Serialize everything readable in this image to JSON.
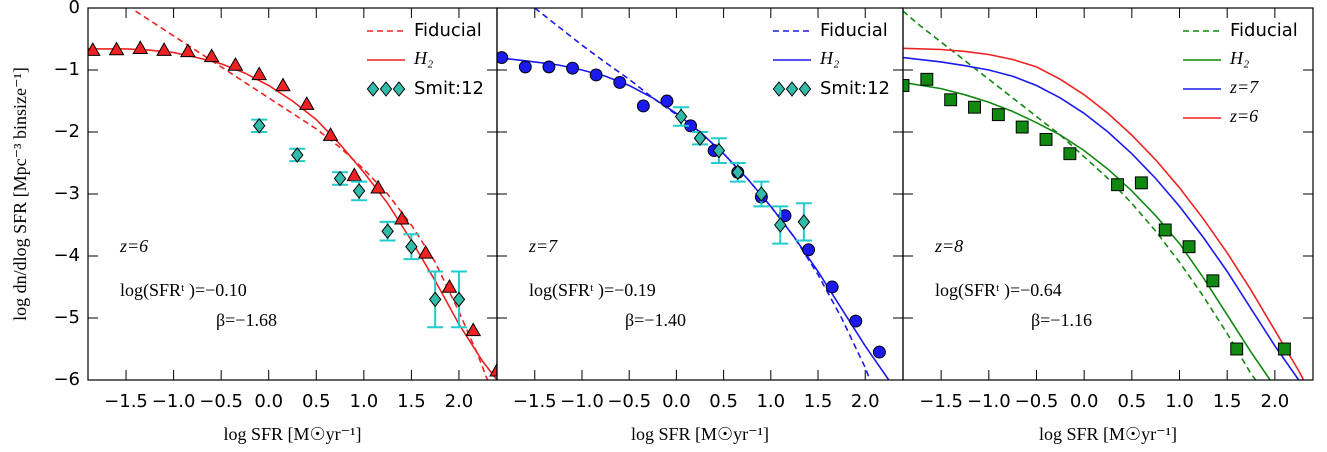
{
  "chart_data": [
    {
      "type": "line",
      "ylabel": "log dn/dlog SFR [Mpc⁻³ binsize⁻¹]",
      "xlabel": "log SFR [M☉yr⁻¹]",
      "xlim": [
        -1.9,
        2.4
      ],
      "ylim": [
        -6,
        0
      ],
      "xticks": [
        {
          "value": -1.5,
          "label": "−1.5"
        },
        {
          "value": -1.0,
          "label": "−1.0"
        },
        {
          "value": -0.5,
          "label": "−0.5"
        },
        {
          "value": 0.0,
          "label": "0.0"
        },
        {
          "value": 0.5,
          "label": "0.5"
        },
        {
          "value": 1.0,
          "label": "1.0"
        },
        {
          "value": 1.5,
          "label": "1.5"
        },
        {
          "value": 2.0,
          "label": "2.0"
        }
      ],
      "yticks": [
        {
          "value": 0,
          "label": "0"
        },
        {
          "value": -1,
          "label": "−1"
        },
        {
          "value": -2,
          "label": "−2"
        },
        {
          "value": -3,
          "label": "−3"
        },
        {
          "value": -4,
          "label": "−4"
        },
        {
          "value": -5,
          "label": "−5"
        },
        {
          "value": -6,
          "label": "−6"
        }
      ],
      "legend": "upper right",
      "annotations": [
        "z=6",
        "log(SFRᵗ )=−0.10",
        "β=−1.68"
      ],
      "series": [
        {
          "name": "Fiducial",
          "color": "#ee2222",
          "style": "dashed",
          "x": [
            -1.4,
            -1.25,
            -1.0,
            -0.75,
            -0.5,
            -0.25,
            0,
            0.25,
            0.5,
            0.75,
            1.0,
            1.25,
            1.5,
            1.75,
            2.0,
            2.2,
            2.3
          ],
          "values": [
            -0.05,
            -0.2,
            -0.45,
            -0.7,
            -0.95,
            -1.2,
            -1.45,
            -1.7,
            -1.95,
            -2.25,
            -2.6,
            -3.0,
            -3.5,
            -4.1,
            -4.9,
            -5.6,
            -6.0
          ]
        },
        {
          "name": "H₂",
          "color": "#ee2222",
          "style": "solid",
          "x": [
            -1.9,
            -1.5,
            -1.25,
            -1.0,
            -0.75,
            -0.5,
            -0.25,
            0,
            0.25,
            0.5,
            0.75,
            1.0,
            1.25,
            1.5,
            1.75,
            2.0,
            2.25,
            2.4
          ],
          "values": [
            -0.66,
            -0.66,
            -0.68,
            -0.72,
            -0.8,
            -0.9,
            -1.05,
            -1.25,
            -1.5,
            -1.8,
            -2.2,
            -2.65,
            -3.15,
            -3.75,
            -4.4,
            -5.1,
            -5.7,
            -6.0
          ]
        },
        {
          "color": "#ee2222",
          "style": "marker",
          "marker": "triangle",
          "x": [
            -1.85,
            -1.6,
            -1.35,
            -1.1,
            -0.85,
            -0.6,
            -0.35,
            -0.1,
            0.15,
            0.4,
            0.65,
            0.9,
            1.15,
            1.4,
            1.65,
            1.9,
            2.15,
            2.4
          ],
          "values": [
            -0.68,
            -0.67,
            -0.65,
            -0.68,
            -0.7,
            -0.78,
            -0.92,
            -1.07,
            -1.25,
            -1.55,
            -2.05,
            -2.7,
            -2.9,
            -3.4,
            -3.95,
            -4.5,
            -5.2,
            -5.85
          ]
        },
        {
          "name": "Smit:12",
          "color": "#33bbaa",
          "errcolor": "#22cccc",
          "style": "marker",
          "marker": "diamond",
          "x": [
            -0.1,
            0.3,
            0.75,
            0.95,
            1.25,
            1.5,
            1.75,
            2.0
          ],
          "values": [
            -1.9,
            -2.37,
            -2.75,
            -2.95,
            -3.6,
            -3.85,
            -4.7,
            -4.7
          ],
          "errors": [
            0.1,
            0.1,
            0.1,
            0.15,
            0.15,
            0.2,
            0.45,
            0.45
          ]
        }
      ]
    },
    {
      "type": "line",
      "xlabel": "log SFR [M☉yr⁻¹]",
      "xlim": [
        -1.9,
        2.4
      ],
      "ylim": [
        -6,
        0
      ],
      "xticks": [
        {
          "value": -1.5,
          "label": "−1.5"
        },
        {
          "value": -1.0,
          "label": "−1.0"
        },
        {
          "value": -0.5,
          "label": "−0.5"
        },
        {
          "value": 0.0,
          "label": "0.0"
        },
        {
          "value": 0.5,
          "label": "0.5"
        },
        {
          "value": 1.0,
          "label": "1.0"
        },
        {
          "value": 1.5,
          "label": "1.5"
        },
        {
          "value": 2.0,
          "label": "2.0"
        }
      ],
      "yticks": [
        0,
        -1,
        -2,
        -3,
        -4,
        -5,
        -6
      ],
      "legend": "upper right",
      "annotations": [
        "z=7",
        "log(SFRᵗ )=−0.19",
        "β=−1.40"
      ],
      "series": [
        {
          "name": "Fiducial",
          "color": "#1a1aee",
          "style": "dashed",
          "x": [
            -1.5,
            -1.25,
            -1.0,
            -0.75,
            -0.5,
            -0.25,
            0,
            0.25,
            0.5,
            0.75,
            1.0,
            1.25,
            1.5,
            1.75,
            2.0,
            2.05
          ],
          "values": [
            0.0,
            -0.3,
            -0.6,
            -0.88,
            -1.15,
            -1.45,
            -1.72,
            -2.0,
            -2.35,
            -2.75,
            -3.2,
            -3.7,
            -4.3,
            -5.0,
            -5.8,
            -6.0
          ]
        },
        {
          "name": "H₂",
          "color": "#1a1aee",
          "style": "solid",
          "x": [
            -1.9,
            -1.5,
            -1.25,
            -1.0,
            -0.75,
            -0.5,
            -0.25,
            0,
            0.25,
            0.5,
            0.75,
            1.0,
            1.25,
            1.5,
            1.75,
            2.0,
            2.25
          ],
          "values": [
            -0.8,
            -0.87,
            -0.92,
            -1.0,
            -1.1,
            -1.25,
            -1.45,
            -1.7,
            -2.0,
            -2.35,
            -2.75,
            -3.2,
            -3.7,
            -4.25,
            -4.85,
            -5.45,
            -6.0
          ]
        },
        {
          "color": "#1a1aee",
          "style": "marker",
          "marker": "circle",
          "x": [
            -1.85,
            -1.6,
            -1.35,
            -1.1,
            -0.85,
            -0.6,
            -0.35,
            -0.1,
            0.15,
            0.4,
            0.65,
            0.9,
            1.15,
            1.4,
            1.65,
            1.9,
            2.15
          ],
          "values": [
            -0.8,
            -0.95,
            -0.95,
            -0.97,
            -1.08,
            -1.2,
            -1.58,
            -1.5,
            -1.9,
            -2.3,
            -2.65,
            -3.05,
            -3.35,
            -3.9,
            -4.5,
            -5.05,
            -5.55
          ]
        },
        {
          "name": "Smit:12",
          "color": "#33bbaa",
          "errcolor": "#22cccc",
          "style": "marker",
          "marker": "diamond",
          "x": [
            0.05,
            0.25,
            0.45,
            0.65,
            0.9,
            1.1,
            1.35
          ],
          "values": [
            -1.75,
            -2.1,
            -2.3,
            -2.65,
            -3.0,
            -3.5,
            -3.45
          ],
          "errors": [
            0.15,
            0.1,
            0.2,
            0.15,
            0.2,
            0.3,
            0.3
          ]
        }
      ]
    },
    {
      "type": "line",
      "xlabel": "log SFR [M☉yr⁻¹]",
      "xlim": [
        -1.9,
        2.4
      ],
      "ylim": [
        -6,
        0
      ],
      "xticks": [
        {
          "value": -1.5,
          "label": "−1.5"
        },
        {
          "value": -1.0,
          "label": "−1.0"
        },
        {
          "value": -0.5,
          "label": "−0.5"
        },
        {
          "value": 0.0,
          "label": "0.0"
        },
        {
          "value": 0.5,
          "label": "0.5"
        },
        {
          "value": 1.0,
          "label": "1.0"
        },
        {
          "value": 1.5,
          "label": "1.5"
        },
        {
          "value": 2.0,
          "label": "2.0"
        }
      ],
      "yticks": [
        0,
        -1,
        -2,
        -3,
        -4,
        -5,
        -6
      ],
      "legend": "upper right",
      "annotations": [
        "z=8",
        "log(SFRᵗ )=−0.64",
        "β=−1.16"
      ],
      "series": [
        {
          "name": "Fiducial",
          "color": "#118811",
          "style": "dashed",
          "x": [
            -1.9,
            -1.75,
            -1.5,
            -1.25,
            -1.0,
            -0.75,
            -0.5,
            -0.25,
            0,
            0.25,
            0.5,
            0.75,
            1.0,
            1.25,
            1.5,
            1.75,
            1.8
          ],
          "values": [
            -0.05,
            -0.25,
            -0.55,
            -0.85,
            -1.15,
            -1.45,
            -1.75,
            -2.05,
            -2.4,
            -2.75,
            -3.15,
            -3.6,
            -4.1,
            -4.65,
            -5.25,
            -5.9,
            -6.0
          ]
        },
        {
          "name": "H₂",
          "color": "#118811",
          "style": "solid",
          "x": [
            -1.9,
            -1.5,
            -1.25,
            -1.0,
            -0.75,
            -0.5,
            -0.25,
            0,
            0.25,
            0.5,
            0.75,
            1.0,
            1.25,
            1.5,
            1.75,
            1.95
          ],
          "values": [
            -1.2,
            -1.3,
            -1.4,
            -1.52,
            -1.67,
            -1.85,
            -2.05,
            -2.3,
            -2.6,
            -2.95,
            -3.35,
            -3.8,
            -4.35,
            -4.95,
            -5.55,
            -6.0
          ]
        },
        {
          "name": "z=7",
          "color": "#1a1aee",
          "style": "solid",
          "x": [
            -1.9,
            -1.5,
            -1.25,
            -1.0,
            -0.75,
            -0.5,
            -0.25,
            0,
            0.25,
            0.5,
            0.75,
            1.0,
            1.25,
            1.5,
            1.75,
            2.0,
            2.25
          ],
          "values": [
            -0.8,
            -0.87,
            -0.93,
            -1.0,
            -1.1,
            -1.25,
            -1.45,
            -1.7,
            -2.0,
            -2.35,
            -2.75,
            -3.2,
            -3.7,
            -4.25,
            -4.85,
            -5.45,
            -6.0
          ]
        },
        {
          "name": "z=6",
          "color": "#ee2222",
          "style": "solid",
          "x": [
            -1.9,
            -1.5,
            -1.25,
            -1.0,
            -0.75,
            -0.5,
            -0.25,
            0,
            0.25,
            0.5,
            0.75,
            1.0,
            1.25,
            1.5,
            1.75,
            2.0,
            2.25,
            2.3
          ],
          "values": [
            -0.65,
            -0.67,
            -0.7,
            -0.75,
            -0.83,
            -0.95,
            -1.15,
            -1.4,
            -1.7,
            -2.05,
            -2.45,
            -2.9,
            -3.4,
            -3.95,
            -4.55,
            -5.2,
            -5.85,
            -6.0
          ]
        },
        {
          "color": "#118811",
          "style": "marker",
          "marker": "square",
          "x": [
            -1.9,
            -1.65,
            -1.4,
            -1.15,
            -0.9,
            -0.65,
            -0.4,
            -0.15,
            0.35,
            0.6,
            0.85,
            1.1,
            1.35,
            1.6,
            2.1
          ],
          "values": [
            -1.25,
            -1.15,
            -1.48,
            -1.6,
            -1.72,
            -1.92,
            -2.12,
            -2.35,
            -2.85,
            -2.82,
            -3.58,
            -3.85,
            -4.4,
            -5.5,
            -5.5
          ]
        }
      ]
    }
  ]
}
